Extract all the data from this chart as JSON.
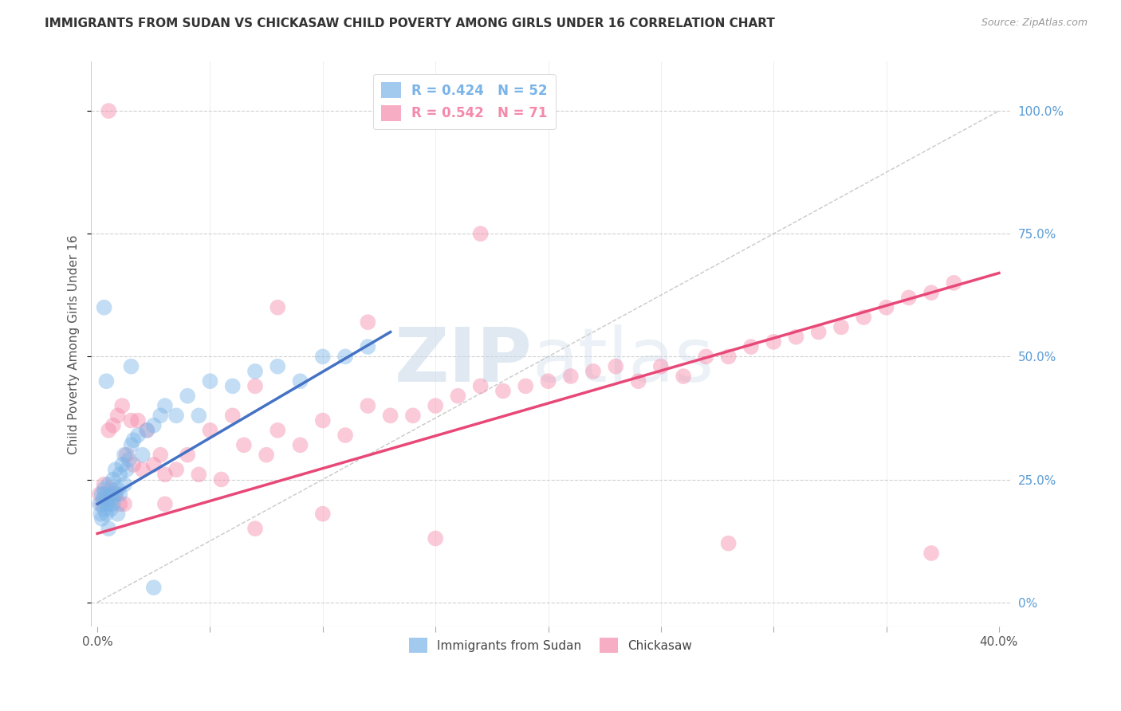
{
  "title": "IMMIGRANTS FROM SUDAN VS CHICKASAW CHILD POVERTY AMONG GIRLS UNDER 16 CORRELATION CHART",
  "source": "Source: ZipAtlas.com",
  "ylabel_left": "Child Poverty Among Girls Under 16",
  "x_tick_labels": [
    "0.0%",
    "",
    "",
    "",
    "",
    "",
    "",
    "",
    "40.0%"
  ],
  "x_tick_values": [
    0.0,
    5.0,
    10.0,
    15.0,
    20.0,
    25.0,
    30.0,
    35.0,
    40.0
  ],
  "y_tick_labels_right": [
    "0%",
    "25.0%",
    "50.0%",
    "75.0%",
    "100.0%"
  ],
  "y_tick_values": [
    0.0,
    25.0,
    50.0,
    75.0,
    100.0
  ],
  "legend_entries": [
    {
      "label": "R = 0.424   N = 52",
      "color": "#7ab4e8"
    },
    {
      "label": "R = 0.542   N = 71",
      "color": "#f48aab"
    }
  ],
  "legend_bottom": [
    {
      "label": "Immigrants from Sudan",
      "color": "#7ab4e8"
    },
    {
      "label": "Chickasaw",
      "color": "#f48aab"
    }
  ],
  "blue_scatter_x": [
    0.1,
    0.15,
    0.2,
    0.2,
    0.25,
    0.3,
    0.3,
    0.35,
    0.4,
    0.4,
    0.5,
    0.5,
    0.5,
    0.6,
    0.6,
    0.65,
    0.7,
    0.7,
    0.8,
    0.8,
    0.9,
    0.9,
    1.0,
    1.0,
    1.1,
    1.2,
    1.2,
    1.3,
    1.4,
    1.5,
    1.6,
    1.8,
    2.0,
    2.2,
    2.5,
    2.8,
    3.0,
    3.5,
    4.0,
    4.5,
    5.0,
    6.0,
    7.0,
    8.0,
    9.0,
    10.0,
    11.0,
    12.0,
    0.3,
    0.4,
    1.5,
    2.5
  ],
  "blue_scatter_y": [
    20.0,
    18.0,
    22.0,
    17.0,
    21.0,
    23.0,
    19.0,
    22.0,
    20.0,
    18.0,
    24.0,
    20.0,
    15.0,
    22.0,
    19.0,
    21.0,
    25.0,
    20.0,
    27.0,
    22.0,
    23.0,
    18.0,
    26.0,
    22.0,
    28.0,
    30.0,
    24.0,
    27.0,
    29.0,
    32.0,
    33.0,
    34.0,
    30.0,
    35.0,
    36.0,
    38.0,
    40.0,
    38.0,
    42.0,
    38.0,
    45.0,
    44.0,
    47.0,
    48.0,
    45.0,
    50.0,
    50.0,
    52.0,
    60.0,
    45.0,
    48.0,
    3.0
  ],
  "pink_scatter_x": [
    0.1,
    0.2,
    0.3,
    0.4,
    0.5,
    0.6,
    0.7,
    0.8,
    0.9,
    1.0,
    1.1,
    1.2,
    1.3,
    1.5,
    1.6,
    1.8,
    2.0,
    2.2,
    2.5,
    2.8,
    3.0,
    3.5,
    4.0,
    4.5,
    5.0,
    5.5,
    6.0,
    6.5,
    7.0,
    7.5,
    8.0,
    9.0,
    10.0,
    11.0,
    12.0,
    13.0,
    14.0,
    15.0,
    16.0,
    17.0,
    18.0,
    19.0,
    20.0,
    21.0,
    22.0,
    23.0,
    24.0,
    25.0,
    26.0,
    27.0,
    28.0,
    29.0,
    30.0,
    31.0,
    32.0,
    33.0,
    34.0,
    35.0,
    36.0,
    37.0,
    38.0,
    8.0,
    12.0,
    17.0,
    0.5,
    3.0,
    7.0,
    10.0,
    15.0,
    28.0,
    37.0
  ],
  "pink_scatter_y": [
    22.0,
    20.0,
    24.0,
    21.0,
    35.0,
    23.0,
    36.0,
    22.0,
    38.0,
    20.0,
    40.0,
    20.0,
    30.0,
    37.0,
    28.0,
    37.0,
    27.0,
    35.0,
    28.0,
    30.0,
    26.0,
    27.0,
    30.0,
    26.0,
    35.0,
    25.0,
    38.0,
    32.0,
    44.0,
    30.0,
    35.0,
    32.0,
    37.0,
    34.0,
    40.0,
    38.0,
    38.0,
    40.0,
    42.0,
    44.0,
    43.0,
    44.0,
    45.0,
    46.0,
    47.0,
    48.0,
    45.0,
    48.0,
    46.0,
    50.0,
    50.0,
    52.0,
    53.0,
    54.0,
    55.0,
    56.0,
    58.0,
    60.0,
    62.0,
    63.0,
    65.0,
    60.0,
    57.0,
    75.0,
    100.0,
    20.0,
    15.0,
    18.0,
    13.0,
    12.0,
    10.0
  ],
  "blue_line_x": [
    0.0,
    13.0
  ],
  "blue_line_y": [
    20.0,
    55.0
  ],
  "pink_line_x": [
    0.0,
    40.0
  ],
  "pink_line_y": [
    14.0,
    67.0
  ],
  "diag_line_x": [
    0.0,
    40.0
  ],
  "diag_line_y": [
    0.0,
    100.0
  ],
  "blue_color": "#7ab4e8",
  "pink_color": "#f48aab",
  "blue_line_color": "#4472c4",
  "pink_line_color": "#e84878",
  "diag_color": "#bbbbbb",
  "background_color": "#ffffff",
  "grid_color": "#d0d0d0",
  "title_color": "#333333",
  "axis_label_color": "#555555",
  "right_axis_label_color": "#5b9bd5",
  "watermark_color": "#c8d8e8",
  "xlim": [
    -0.3,
    40.5
  ],
  "ylim": [
    -5.0,
    110.0
  ]
}
